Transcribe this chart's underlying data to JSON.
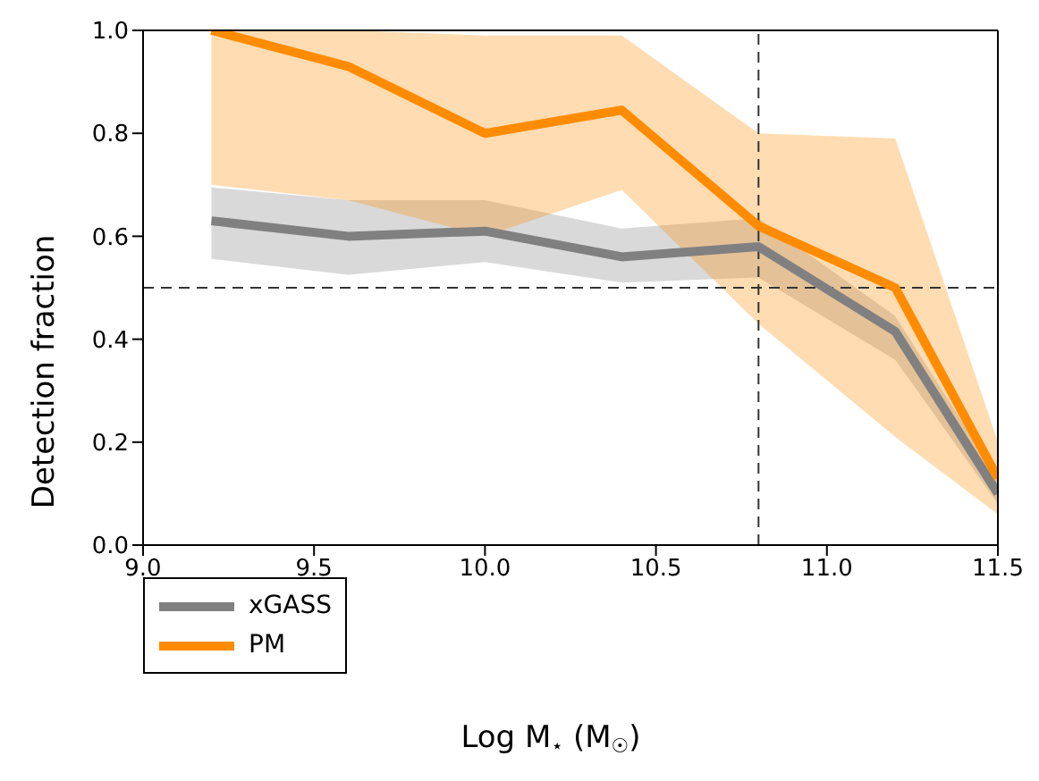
{
  "chart_data": {
    "type": "line",
    "xlabel": "Log M$_{⋆}$  (M$_{☉}$)",
    "ylabel": "Detection fraction",
    "x": [
      9.2,
      9.6,
      10.0,
      10.4,
      10.8,
      11.2,
      11.5
    ],
    "series": [
      {
        "name": "xGASS",
        "color": "#808080",
        "values": [
          0.63,
          0.6,
          0.61,
          0.56,
          0.58,
          0.415,
          0.1
        ],
        "lower": [
          0.556,
          0.525,
          0.55,
          0.51,
          0.52,
          0.36,
          0.08
        ],
        "upper": [
          0.695,
          0.67,
          0.67,
          0.615,
          0.635,
          0.445,
          0.13
        ]
      },
      {
        "name": "PM",
        "color": "#ff8c00",
        "values": [
          1.0,
          0.93,
          0.8,
          0.845,
          0.62,
          0.5,
          0.13
        ],
        "lower": [
          0.7,
          0.67,
          0.6,
          0.69,
          0.43,
          0.21,
          0.06
        ],
        "upper": [
          1.0,
          1.0,
          0.99,
          0.99,
          0.8,
          0.79,
          0.2
        ]
      }
    ],
    "xlim": [
      9.0,
      11.5
    ],
    "xticks": [
      {
        "value": 9.0,
        "label": "9.0"
      },
      {
        "value": 9.5,
        "label": "9.5"
      },
      {
        "value": 10.0,
        "label": "10.0"
      },
      {
        "value": 10.5,
        "label": "10.5"
      },
      {
        "value": 11.0,
        "label": "11.0"
      },
      {
        "value": 11.5,
        "label": "11.5"
      }
    ],
    "ylim": [
      0.0,
      1.0
    ],
    "yticks": [
      {
        "value": 0,
        "label": "0.0"
      },
      {
        "value": 0.2,
        "label": "0.2"
      },
      {
        "value": 0.4,
        "label": "0.4"
      },
      {
        "value": 0.6,
        "label": "0.6"
      },
      {
        "value": 0.8,
        "label": "0.8"
      },
      {
        "value": 1.0,
        "label": "1.0"
      }
    ],
    "ref_lines": [
      {
        "axis": "x",
        "value": 10.8,
        "color": "#333333",
        "line_style": "dashed"
      },
      {
        "axis": "y",
        "value": 0.5,
        "color": "#333333",
        "line_style": "dashed"
      }
    ],
    "grid": false,
    "legend": "bottom left",
    "marker": "none",
    "line_style": "solid"
  }
}
